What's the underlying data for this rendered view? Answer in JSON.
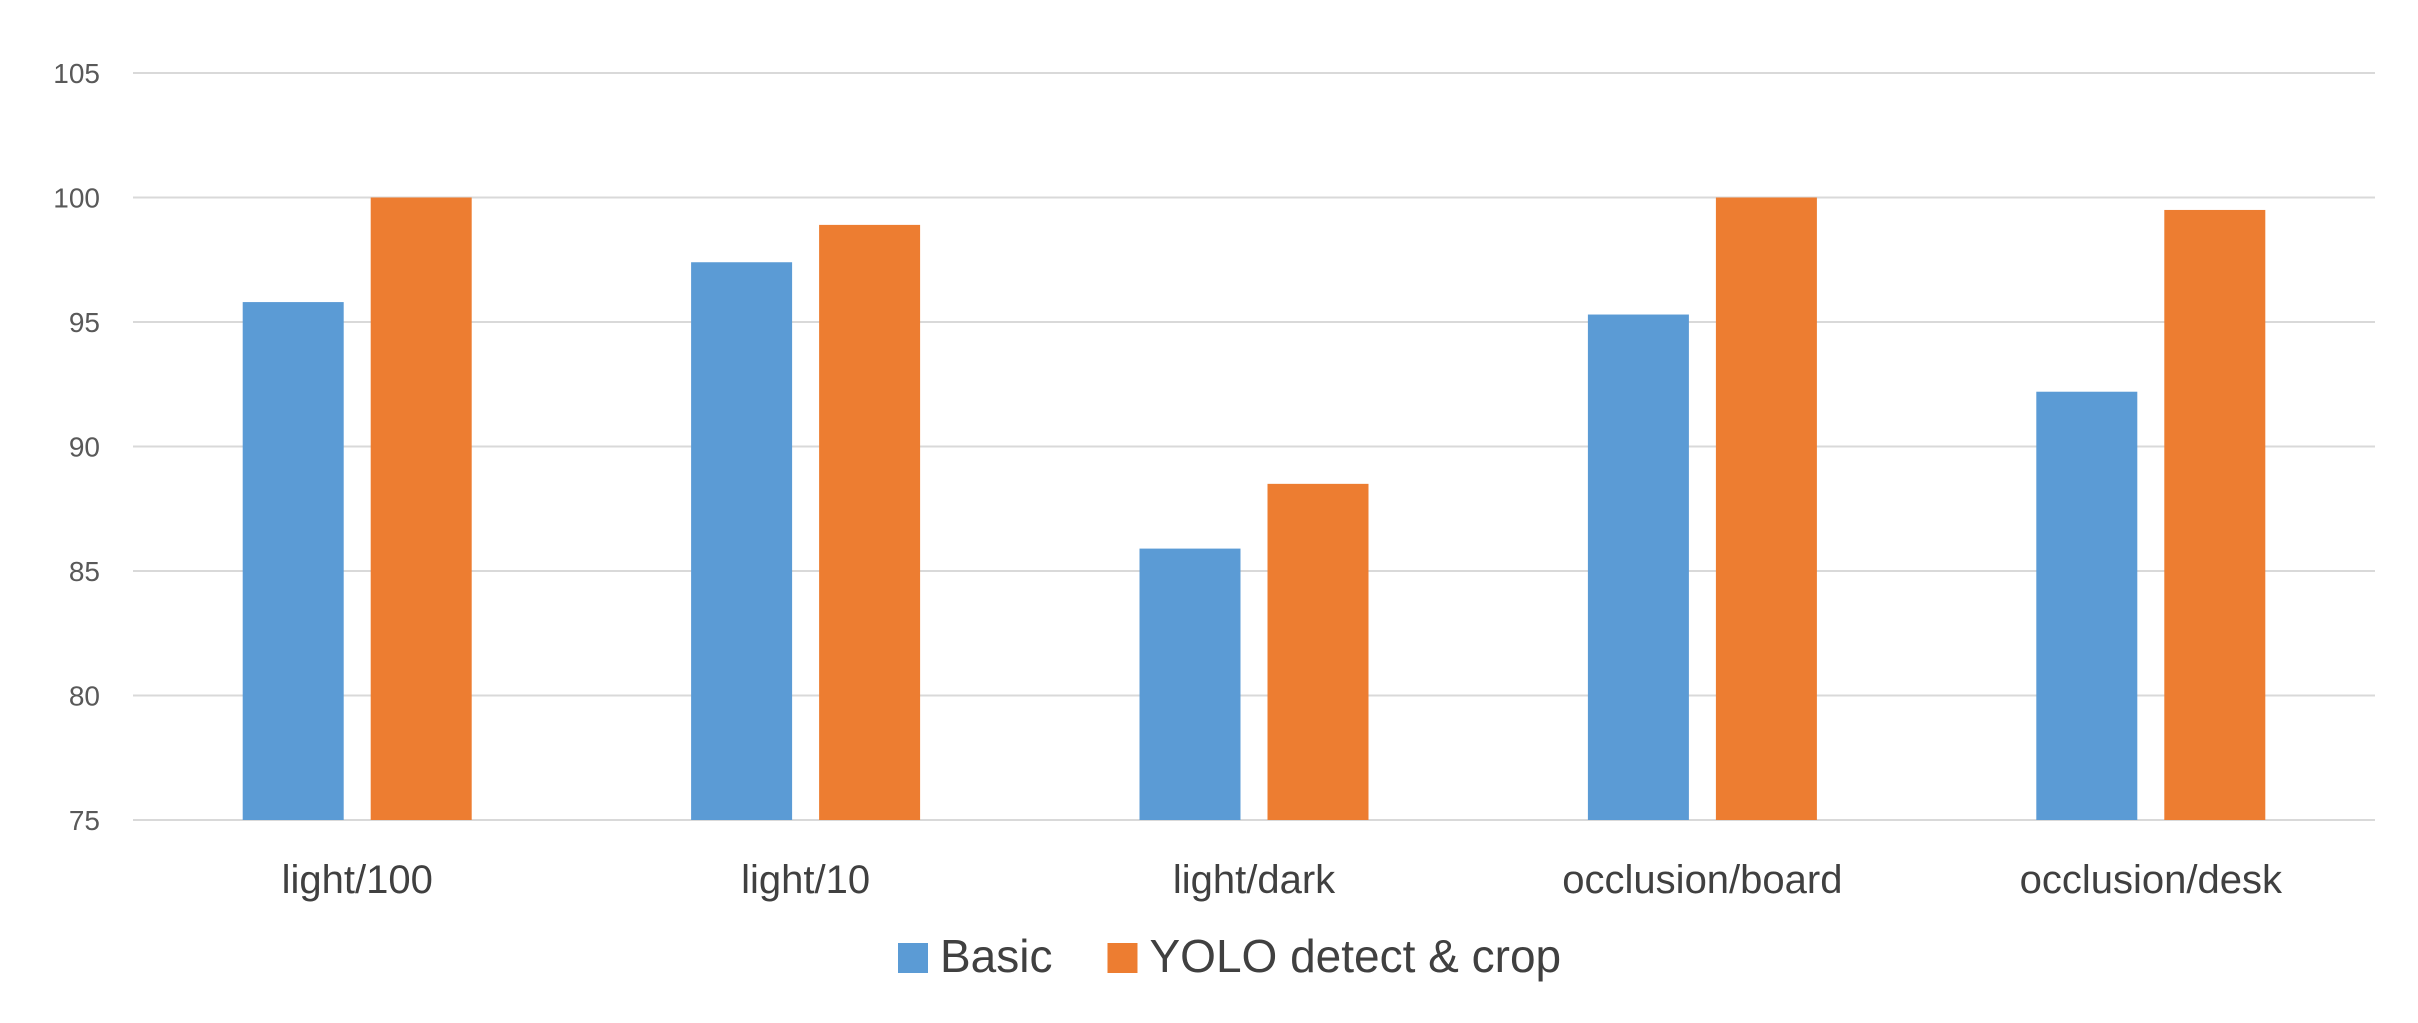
{
  "chart_data": {
    "type": "bar",
    "categories": [
      "light/100",
      "light/10",
      "light/dark",
      "occlusion/board",
      "occlusion/desk"
    ],
    "series": [
      {
        "name": "Basic",
        "color": "#5b9bd5",
        "values": [
          95.8,
          97.4,
          85.9,
          95.3,
          92.2
        ]
      },
      {
        "name": "YOLO detect & crop",
        "color": "#ed7d31",
        "values": [
          100,
          98.9,
          88.5,
          100,
          99.5
        ]
      }
    ],
    "title": "",
    "xlabel": "",
    "ylabel": "",
    "ylim": [
      75,
      105
    ],
    "yticks": [
      75,
      80,
      85,
      90,
      95,
      100,
      105
    ],
    "grid": true,
    "legend_position": "bottom-center"
  }
}
